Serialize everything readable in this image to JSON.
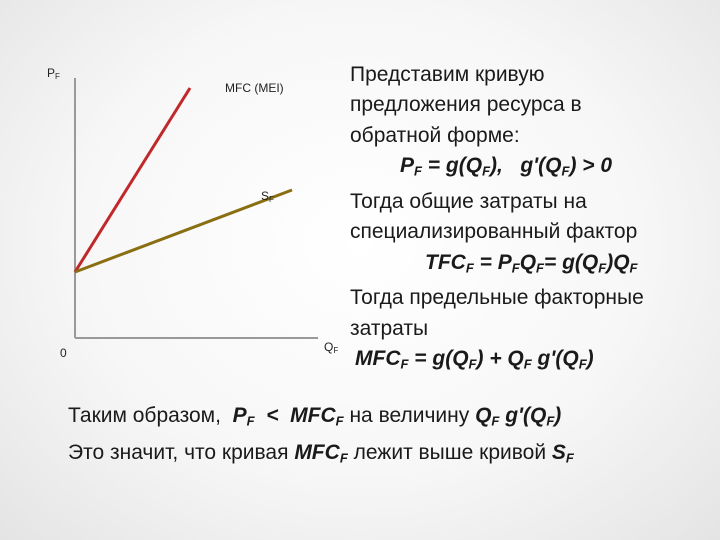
{
  "graph": {
    "y_label": [
      "P",
      {
        "sub": "F"
      }
    ],
    "mfc_label": [
      "MFC (MEI)"
    ],
    "s_label": [
      "S",
      {
        "sub": "F"
      }
    ],
    "origin_label": [
      "0"
    ],
    "x_label": [
      "Q",
      {
        "sub": "F"
      }
    ]
  },
  "text": {
    "lines": [
      [
        "Представим кривую"
      ],
      [
        "предложения ресурса в"
      ],
      [
        "обратной форме:"
      ],
      [
        {
          "b": "P"
        },
        {
          "sub": "F"
        },
        {
          "b": " = g(Q"
        },
        {
          "sub": "F"
        },
        {
          "b": "),   g'(Q"
        },
        {
          "sub": "F"
        },
        {
          "b": ") > 0"
        }
      ],
      [
        "Тогда общие затраты на"
      ],
      [
        "специализированный фактор"
      ],
      [
        {
          "b": "TFC"
        },
        {
          "sub": "F"
        },
        {
          "b": " = P"
        },
        {
          "sub": "F"
        },
        {
          "b": "Q"
        },
        {
          "sub": "F"
        },
        {
          "b": "= g(Q"
        },
        {
          "sub": "F"
        },
        {
          "b": ")Q"
        },
        {
          "sub": "F"
        }
      ],
      [
        "Тогда предельные факторные"
      ],
      [
        "затраты"
      ],
      [
        {
          "b": "MFC"
        },
        {
          "sub": "F"
        },
        {
          "b": " = g(Q"
        },
        {
          "sub": "F"
        },
        {
          "b": ") + Q"
        },
        {
          "sub": "F"
        },
        {
          "b": " g'(Q"
        },
        {
          "sub": "F"
        },
        {
          "b": ")"
        }
      ]
    ],
    "conclusion": [
      [
        "Таким образом,  ",
        {
          "b": "P"
        },
        {
          "sub": "F"
        },
        {
          "b": "  <  MFC"
        },
        {
          "sub": "F"
        },
        " на величину ",
        {
          "b": "Q"
        },
        {
          "sub": "F"
        },
        {
          "b": " g'(Q"
        },
        {
          "sub": "F"
        },
        {
          "b": ")"
        }
      ],
      [
        "Это значит, что кривая ",
        {
          "b": "MFC"
        },
        {
          "sub": "F"
        },
        " лежит выше кривой ",
        {
          "b": "S"
        },
        {
          "sub": "F"
        }
      ]
    ]
  }
}
